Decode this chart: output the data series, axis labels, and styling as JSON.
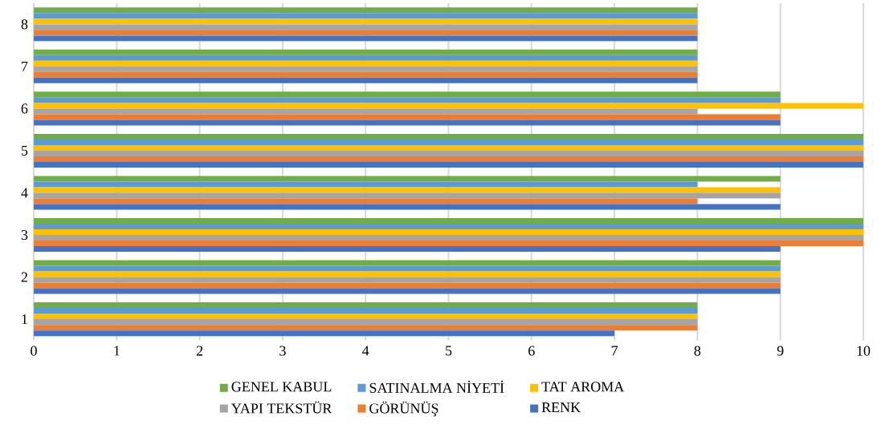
{
  "chart_data": {
    "type": "bar",
    "orientation": "horizontal",
    "categories": [
      "8",
      "7",
      "6",
      "5",
      "4",
      "3",
      "2",
      "1"
    ],
    "series": [
      {
        "name": "RENK",
        "color": "#4472c4",
        "values": [
          8,
          8,
          9,
          10,
          9,
          9,
          9,
          7
        ]
      },
      {
        "name": "GÖRÜNÜŞ",
        "color": "#ed7d31",
        "values": [
          8,
          8,
          9,
          10,
          8,
          10,
          9,
          8
        ]
      },
      {
        "name": "YAPI TEKSTÜR",
        "color": "#a5a5a5",
        "values": [
          8,
          8,
          8,
          10,
          9,
          10,
          9,
          8
        ]
      },
      {
        "name": "TAT AROMA",
        "color": "#ffc000",
        "values": [
          8,
          8,
          10,
          10,
          9,
          10,
          9,
          8
        ]
      },
      {
        "name": "SATINALMA NİYETİ",
        "color": "#5b9bd5",
        "values": [
          8,
          8,
          9,
          10,
          8,
          10,
          9,
          8
        ]
      },
      {
        "name": "GENEL KABUL",
        "color": "#70ad47",
        "values": [
          8,
          8,
          9,
          10,
          9,
          10,
          9,
          8
        ]
      }
    ],
    "xlim": [
      0,
      10
    ],
    "xticks": [
      0,
      1,
      2,
      3,
      4,
      5,
      6,
      7,
      8,
      9,
      10
    ],
    "grid": "x",
    "legend": "bottom"
  }
}
